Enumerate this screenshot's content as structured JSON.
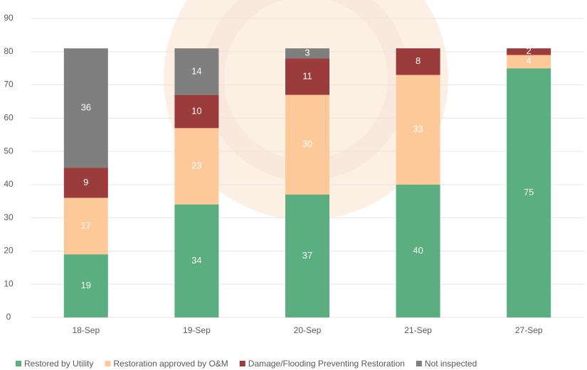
{
  "chart_data": {
    "type": "stacked_bar",
    "categories": [
      "18-Sep",
      "19-Sep",
      "20-Sep",
      "21-Sep",
      "27-Sep"
    ],
    "series": [
      {
        "name": "Restored by Utility",
        "color": "#5aae7f",
        "values": [
          19,
          34,
          37,
          40,
          75
        ]
      },
      {
        "name": "Restoration approved by O&M",
        "color": "#fec999",
        "values": [
          17,
          23,
          30,
          33,
          4
        ]
      },
      {
        "name": "Damage/Flooding Preventing Restoration",
        "color": "#9c3b3b",
        "values": [
          9,
          10,
          11,
          8,
          2
        ]
      },
      {
        "name": "Not inspected",
        "color": "#7f7f7f",
        "values": [
          36,
          14,
          3,
          null,
          null
        ]
      }
    ],
    "ylim": [
      0,
      90
    ],
    "yticks": [
      0,
      10,
      20,
      30,
      40,
      50,
      60,
      70,
      80,
      90
    ],
    "grid": true,
    "legend": "bottom"
  }
}
